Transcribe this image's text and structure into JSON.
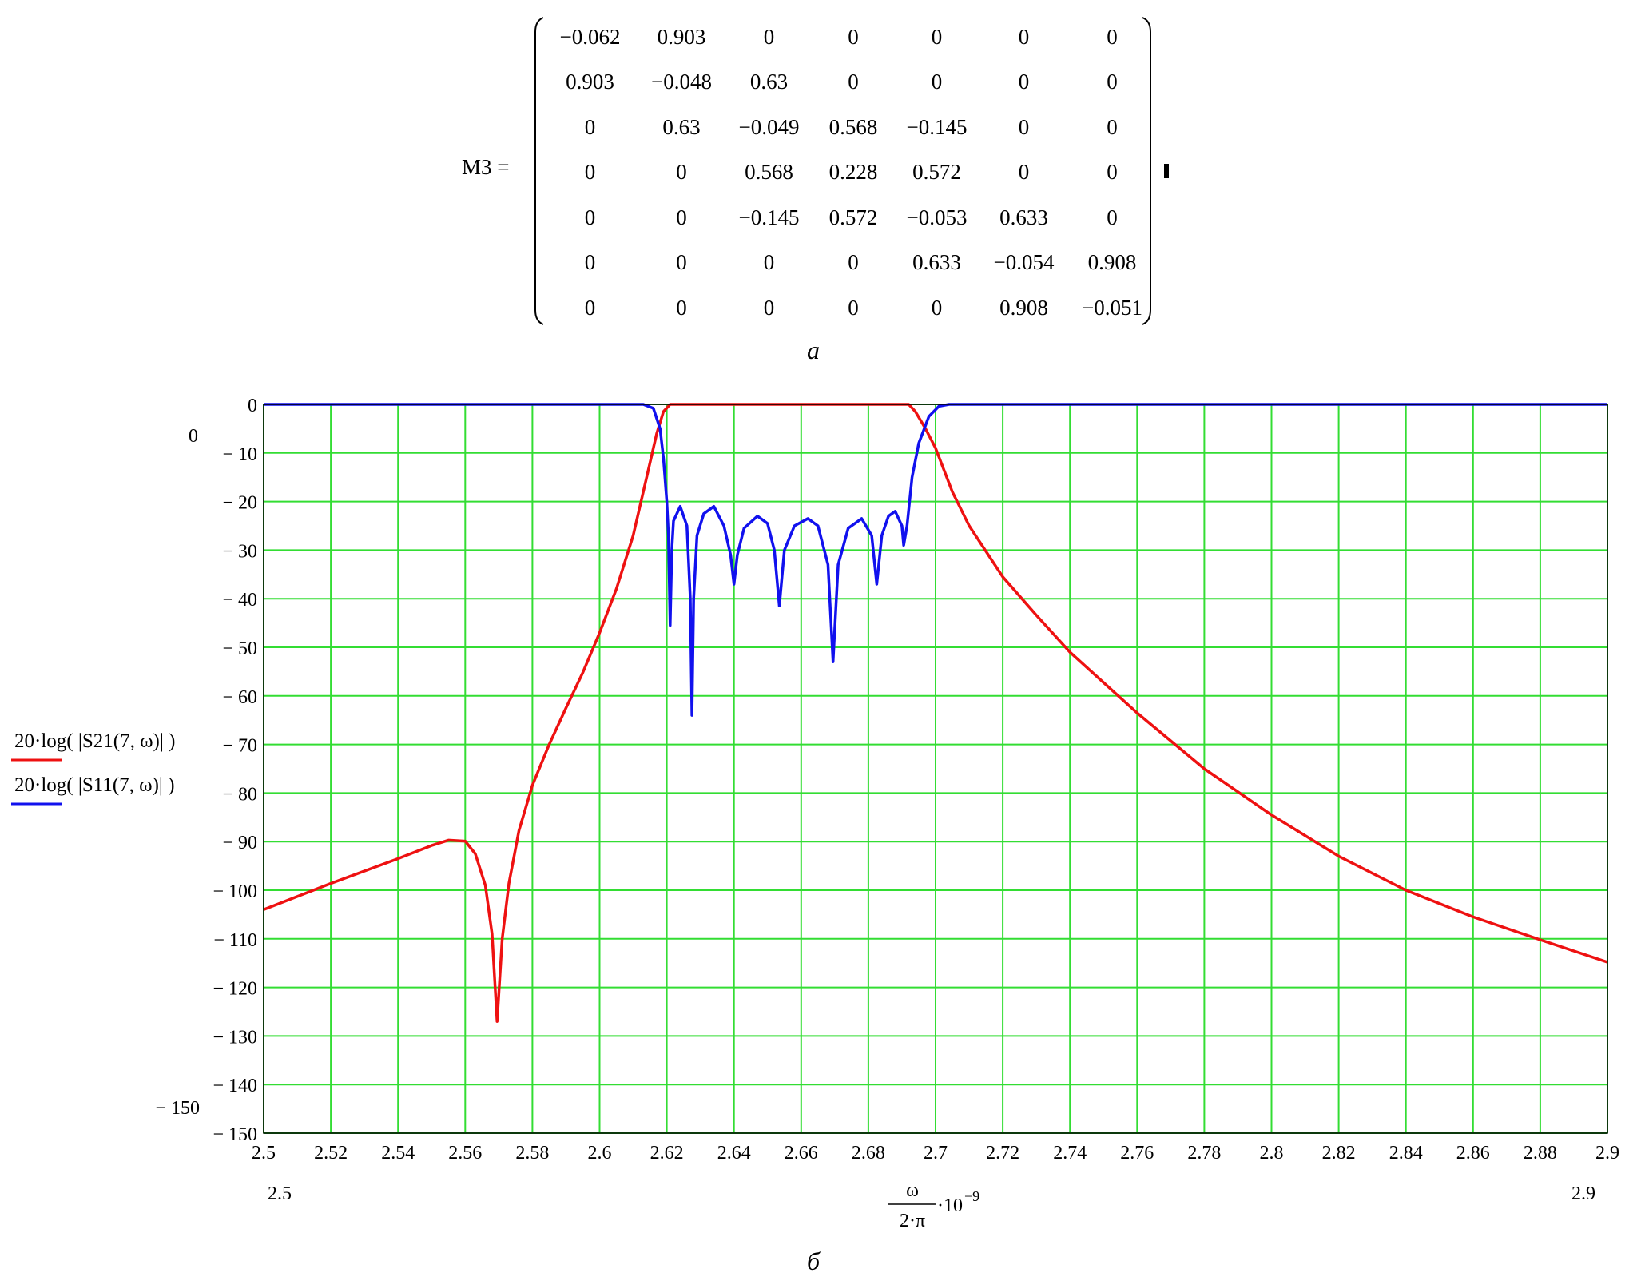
{
  "matrix": {
    "label": "M3 =",
    "rows": [
      [
        "−0.062",
        "0.903",
        "0",
        "0",
        "0",
        "0",
        "0"
      ],
      [
        "0.903",
        "−0.048",
        "0.63",
        "0",
        "0",
        "0",
        "0"
      ],
      [
        "0",
        "0.63",
        "−0.049",
        "0.568",
        "−0.145",
        "0",
        "0"
      ],
      [
        "0",
        "0",
        "0.568",
        "0.228",
        "0.572",
        "0",
        "0"
      ],
      [
        "0",
        "0",
        "−0.145",
        "0.572",
        "−0.053",
        "0.633",
        "0"
      ],
      [
        "0",
        "0",
        "0",
        "0",
        "0.633",
        "−0.054",
        "0.908"
      ],
      [
        "0",
        "0",
        "0",
        "0",
        "0",
        "0.908",
        "−0.051"
      ]
    ]
  },
  "captions": {
    "a": "a",
    "b": "б"
  },
  "chart_data": {
    "type": "line",
    "xlim": [
      2.5,
      2.9
    ],
    "ylim": [
      -150,
      0
    ],
    "x_ticks": [
      "2.5",
      "2.52",
      "2.54",
      "2.56",
      "2.58",
      "2.6",
      "2.62",
      "2.64",
      "2.66",
      "2.68",
      "2.7",
      "2.72",
      "2.74",
      "2.76",
      "2.78",
      "2.8",
      "2.82",
      "2.84",
      "2.86",
      "2.88",
      "2.9"
    ],
    "y_ticks": [
      "0",
      "− 10",
      "− 20",
      "− 30",
      "− 40",
      "− 50",
      "− 60",
      "− 70",
      "− 80",
      "− 90",
      "− 100",
      "− 110",
      "− 120",
      "− 130",
      "− 140",
      "− 150"
    ],
    "y_limit_labels": {
      "top": "0",
      "bottom": "− 150"
    },
    "x_limit_labels": {
      "left": "2.5",
      "right": "2.9"
    },
    "xlabel": {
      "numerator": "ω",
      "denominator": "2·π",
      "suffix": "·10",
      "exponent": "−9"
    },
    "grid": true,
    "colors": {
      "grid": "#33dd33",
      "s21": "#ee1111",
      "s11": "#1111ee"
    },
    "series": [
      {
        "name": "20·log( |S21(7, ω)| )",
        "color": "#ee1111",
        "points": [
          [
            2.5,
            -104
          ],
          [
            2.52,
            -98.6
          ],
          [
            2.54,
            -93.5
          ],
          [
            2.55,
            -90.8
          ],
          [
            2.555,
            -89.7
          ],
          [
            2.56,
            -89.9
          ],
          [
            2.563,
            -92.5
          ],
          [
            2.566,
            -99
          ],
          [
            2.568,
            -109
          ],
          [
            2.5695,
            -127
          ],
          [
            2.571,
            -110
          ],
          [
            2.573,
            -98.6
          ],
          [
            2.576,
            -87.7
          ],
          [
            2.58,
            -78.4
          ],
          [
            2.585,
            -70
          ],
          [
            2.59,
            -62.5
          ],
          [
            2.595,
            -55.2
          ],
          [
            2.6,
            -47
          ],
          [
            2.605,
            -38
          ],
          [
            2.61,
            -27
          ],
          [
            2.614,
            -15
          ],
          [
            2.617,
            -6
          ],
          [
            2.619,
            -1.5
          ],
          [
            2.621,
            0
          ],
          [
            2.692,
            0
          ],
          [
            2.694,
            -1.5
          ],
          [
            2.697,
            -5
          ],
          [
            2.7,
            -9
          ],
          [
            2.705,
            -18
          ],
          [
            2.71,
            -25
          ],
          [
            2.72,
            -35.5
          ],
          [
            2.73,
            -43.4
          ],
          [
            2.74,
            -51
          ],
          [
            2.76,
            -63.5
          ],
          [
            2.78,
            -75
          ],
          [
            2.8,
            -84.5
          ],
          [
            2.82,
            -93
          ],
          [
            2.84,
            -100
          ],
          [
            2.86,
            -105.5
          ],
          [
            2.88,
            -110.2
          ],
          [
            2.9,
            -114.8
          ]
        ]
      },
      {
        "name": "20·log( |S11(7, ω)| )",
        "color": "#1111ee",
        "points": [
          [
            2.5,
            0
          ],
          [
            2.613,
            0
          ],
          [
            2.616,
            -0.8
          ],
          [
            2.618,
            -5
          ],
          [
            2.619,
            -11
          ],
          [
            2.62,
            -20
          ],
          [
            2.6205,
            -27
          ],
          [
            2.621,
            -45.5
          ],
          [
            2.6215,
            -30
          ],
          [
            2.622,
            -24
          ],
          [
            2.624,
            -21
          ],
          [
            2.626,
            -25
          ],
          [
            2.627,
            -40
          ],
          [
            2.6275,
            -64
          ],
          [
            2.628,
            -40
          ],
          [
            2.629,
            -27
          ],
          [
            2.631,
            -22.5
          ],
          [
            2.634,
            -21
          ],
          [
            2.637,
            -25
          ],
          [
            2.639,
            -31
          ],
          [
            2.64,
            -37
          ],
          [
            2.641,
            -31
          ],
          [
            2.643,
            -25.5
          ],
          [
            2.647,
            -23
          ],
          [
            2.65,
            -24.5
          ],
          [
            2.652,
            -30
          ],
          [
            2.6535,
            -41.5
          ],
          [
            2.655,
            -30
          ],
          [
            2.658,
            -25
          ],
          [
            2.662,
            -23.5
          ],
          [
            2.665,
            -25
          ],
          [
            2.668,
            -33
          ],
          [
            2.6695,
            -53
          ],
          [
            2.671,
            -33
          ],
          [
            2.674,
            -25.5
          ],
          [
            2.678,
            -23.5
          ],
          [
            2.681,
            -27
          ],
          [
            2.6825,
            -37
          ],
          [
            2.684,
            -27
          ],
          [
            2.686,
            -23
          ],
          [
            2.688,
            -22
          ],
          [
            2.69,
            -25
          ],
          [
            2.6905,
            -29
          ],
          [
            2.6915,
            -25
          ],
          [
            2.693,
            -15
          ],
          [
            2.695,
            -8
          ],
          [
            2.698,
            -2.5
          ],
          [
            2.701,
            -0.4
          ],
          [
            2.704,
            0
          ],
          [
            2.9,
            0
          ]
        ]
      }
    ]
  }
}
